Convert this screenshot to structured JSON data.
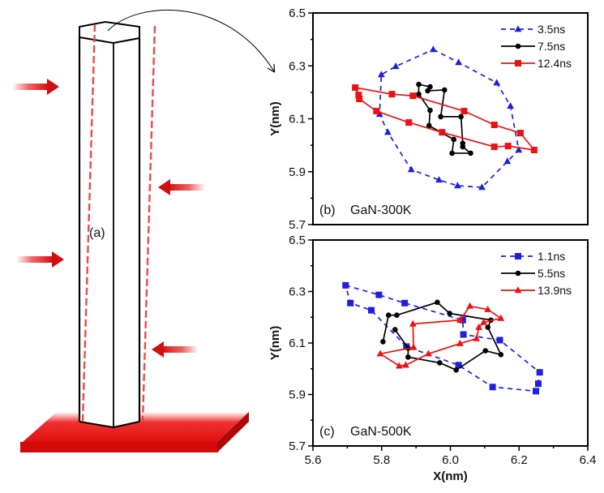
{
  "illustration": {
    "label": "(a)",
    "description": "hexagonal GaN nanowire on red substrate with lateral red arrows and dashed red bending outline"
  },
  "chart_data": [
    {
      "type": "line",
      "panel_label": "(b)",
      "title": "GaN-300K",
      "xlabel": "",
      "ylabel": "Y(nm)",
      "xlim": [
        5.6,
        6.4
      ],
      "ylim": [
        5.7,
        6.5
      ],
      "yticks": [
        "5.7",
        "5.9",
        "6.1",
        "6.3",
        "6.5"
      ],
      "xticks": [],
      "legend_position": "top-right",
      "series": [
        {
          "name": "3.5ns",
          "color": "#1f1fe0",
          "style": "dashed",
          "marker": "triangle",
          "closed": true,
          "x": [
            5.95,
            6.024,
            6.135,
            6.175,
            6.199,
            6.166,
            6.092,
            6.021,
            5.967,
            5.886,
            5.818,
            5.794,
            5.799,
            5.841
          ],
          "y": [
            6.362,
            6.313,
            6.236,
            6.148,
            5.982,
            5.939,
            5.841,
            5.847,
            5.869,
            5.908,
            6.049,
            6.117,
            6.267,
            6.298
          ]
        },
        {
          "name": "7.5ns",
          "color": "#000000",
          "style": "solid",
          "marker": "circle",
          "closed": true,
          "x": [
            5.908,
            5.941,
            5.934,
            5.983,
            5.972,
            6.031,
            6.036,
            6.036,
            6.059,
            6.005,
            6.01,
            5.938,
            5.941,
            5.908
          ],
          "y": [
            6.23,
            6.221,
            6.206,
            6.209,
            6.108,
            6.108,
            6.007,
            5.994,
            5.97,
            5.97,
            6.022,
            6.074,
            6.132,
            6.193
          ]
        },
        {
          "name": "12.4ns",
          "color": "#ee1111",
          "style": "solid",
          "marker": "square",
          "closed": true,
          "x": [
            5.723,
            5.83,
            5.891,
            6.04,
            6.128,
            6.204,
            6.244,
            6.168,
            6.128,
            5.976,
            5.879,
            5.785,
            5.735,
            5.733
          ],
          "y": [
            6.218,
            6.193,
            6.187,
            6.129,
            6.077,
            6.046,
            5.982,
            5.997,
            5.994,
            6.049,
            6.086,
            6.129,
            6.175,
            6.19
          ]
        }
      ]
    },
    {
      "type": "line",
      "panel_label": "(c)",
      "title": "GaN-500K",
      "xlabel": "X(nm)",
      "ylabel": "Y(nm)",
      "xlim": [
        5.6,
        6.4
      ],
      "ylim": [
        5.7,
        6.5
      ],
      "yticks": [
        "5.7",
        "5.9",
        "6.1",
        "6.3",
        "6.5"
      ],
      "xticks": [
        "5.6",
        "5.8",
        "6.0",
        "6.2",
        "6.4"
      ],
      "legend_position": "top-right",
      "series": [
        {
          "name": "1.1ns",
          "color": "#1f1fe0",
          "style": "dashed",
          "marker": "square",
          "closed": true,
          "x": [
            5.695,
            5.792,
            5.867,
            6.036,
            6.038,
            6.144,
            6.26,
            6.256,
            6.249,
            6.123,
            6.024,
            5.872,
            5.77,
            5.709
          ],
          "y": [
            6.324,
            6.287,
            6.255,
            6.189,
            6.133,
            6.111,
            5.986,
            5.942,
            5.913,
            5.929,
            6.014,
            6.086,
            6.227,
            6.255
          ]
        },
        {
          "name": "5.5ns",
          "color": "#000000",
          "style": "solid",
          "marker": "circle",
          "closed": false,
          "x": [
            5.804,
            5.82,
            5.844,
            5.962,
            5.998,
            6.118,
            6.109,
            6.147,
            6.102,
            6.017,
            5.969,
            5.877,
            5.877,
            5.839
          ],
          "y": [
            6.105,
            6.208,
            6.208,
            6.258,
            6.215,
            6.189,
            6.161,
            6.055,
            6.07,
            5.995,
            6.023,
            6.045,
            6.08,
            6.152
          ]
        },
        {
          "name": "13.9ns",
          "color": "#ee1111",
          "style": "solid",
          "marker": "triangle",
          "closed": true,
          "x": [
            5.891,
            6.028,
            6.057,
            6.109,
            6.147,
            6.097,
            6.083,
            6.076,
            6.028,
            5.936,
            5.87,
            5.851,
            5.796,
            5.893
          ],
          "y": [
            6.174,
            6.189,
            6.243,
            6.23,
            6.196,
            6.18,
            6.161,
            6.117,
            6.098,
            6.058,
            6.014,
            6.011,
            6.058,
            6.083
          ]
        }
      ]
    }
  ]
}
